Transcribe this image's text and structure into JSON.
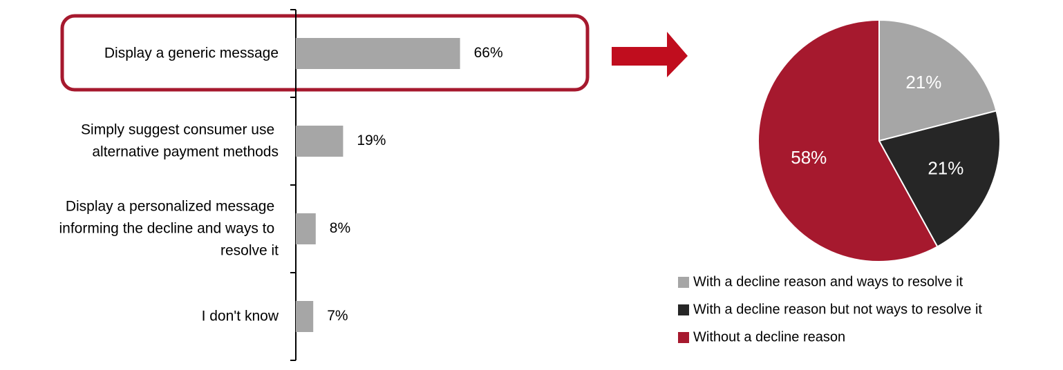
{
  "chart_data": [
    {
      "type": "bar",
      "orientation": "horizontal",
      "categories": [
        "Display a generic message",
        "Simply suggest consumer use alternative payment methods",
        "Display a personalized message informing the decline and ways to resolve it",
        "I don't know"
      ],
      "values": [
        66,
        19,
        8,
        7
      ],
      "value_labels": [
        "66%",
        "19%",
        "8%",
        "7%"
      ],
      "color": "#a6a6a6"
    },
    {
      "type": "pie",
      "categories": [
        "With a decline reason and ways to resolve it",
        "With a decline reason but not ways to resolve it",
        "Without a decline reason"
      ],
      "values": [
        21,
        21,
        58
      ],
      "value_labels": [
        "21%",
        "21%",
        "58%"
      ],
      "colors": [
        "#a6a6a6",
        "#262626",
        "#a6192e"
      ]
    }
  ]
}
